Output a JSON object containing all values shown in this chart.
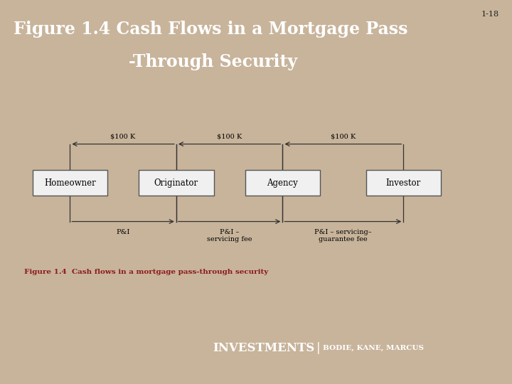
{
  "title_line1": "Figure 1.4 Cash Flows in a Mortgage Pass",
  "title_line2": "-Through Security",
  "title_bg_color": "#09186b",
  "title_text_color": "#ffffff",
  "slide_bg_color": "#c8b49b",
  "diagram_bg_color": "#ffffff",
  "diagram_border_color": "#aaccdd",
  "caption_area_bg": "#ddeef5",
  "box_labels": [
    "Homeowner",
    "Originator",
    "Agency",
    "Investor"
  ],
  "top_arrow_labels": [
    "$100 K",
    "$100 K",
    "$100 K"
  ],
  "bottom_arrow_labels_line1": [
    "P&I",
    "P&I –",
    "P&I – servicing–"
  ],
  "bottom_arrow_labels_line2": [
    "",
    "servicing fee",
    "guarantee fee"
  ],
  "caption": "Figure 1.4  Cash flows in a mortgage pass-through security",
  "caption_color": "#8b1a1a",
  "footer_bg_color": "#09186b",
  "footer_text1": "INVESTMENTS",
  "footer_text2": "BODIE, KANE, MARCUS",
  "footer_separator": "|",
  "page_number": "1-18",
  "box_face_color": "#f0f0f0",
  "box_edge_color": "#555555",
  "arrow_color": "#333333"
}
